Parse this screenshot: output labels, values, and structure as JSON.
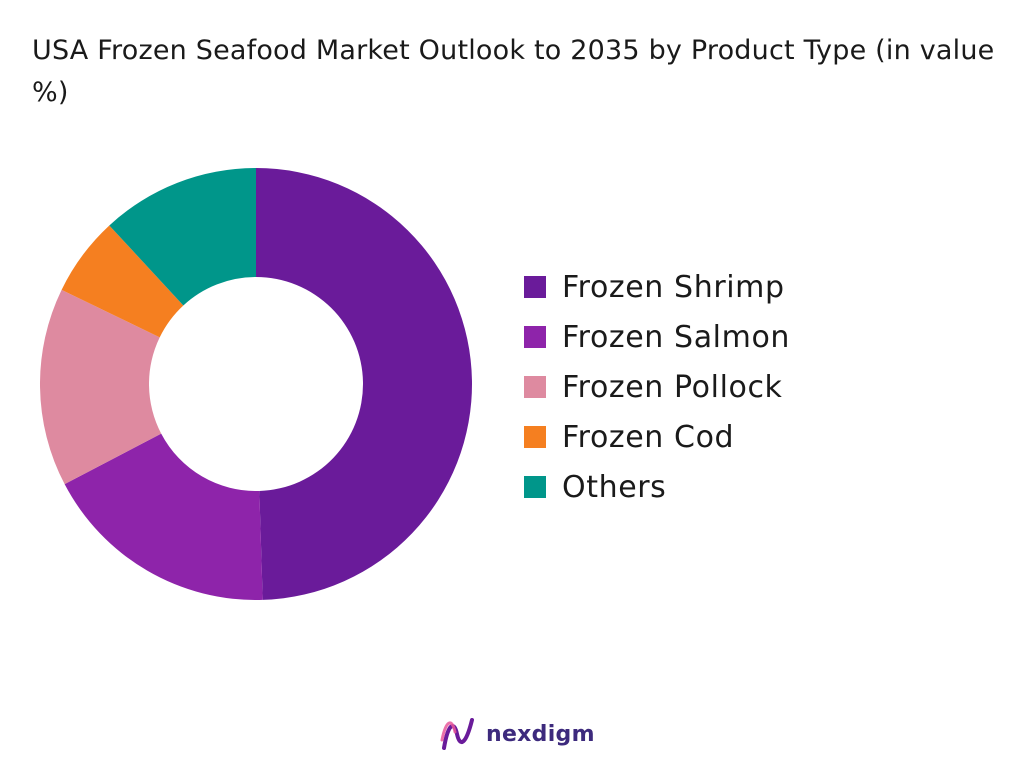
{
  "title": "USA Frozen Seafood Market Outlook to 2035 by Product Type (in value %)",
  "brand": {
    "name": "nexdigm",
    "text_color": "#3d2a7d",
    "mark_colors": [
      "#6a1b9a",
      "#e8589a"
    ]
  },
  "chart_data": {
    "type": "pie",
    "donut": true,
    "title": "USA Frozen Seafood Market Outlook to 2035 by Product Type (in value %)",
    "legend_position": "right",
    "start_angle_deg": 0,
    "direction": "clockwise",
    "categories": [
      "Frozen Shrimp",
      "Frozen Salmon",
      "Frozen Pollock",
      "Frozen Cod",
      "Others"
    ],
    "values": [
      50,
      18,
      15,
      6,
      12
    ],
    "colors": [
      "#6a1b9a",
      "#8e24aa",
      "#de8aa0",
      "#f57f20",
      "#00968a"
    ]
  }
}
